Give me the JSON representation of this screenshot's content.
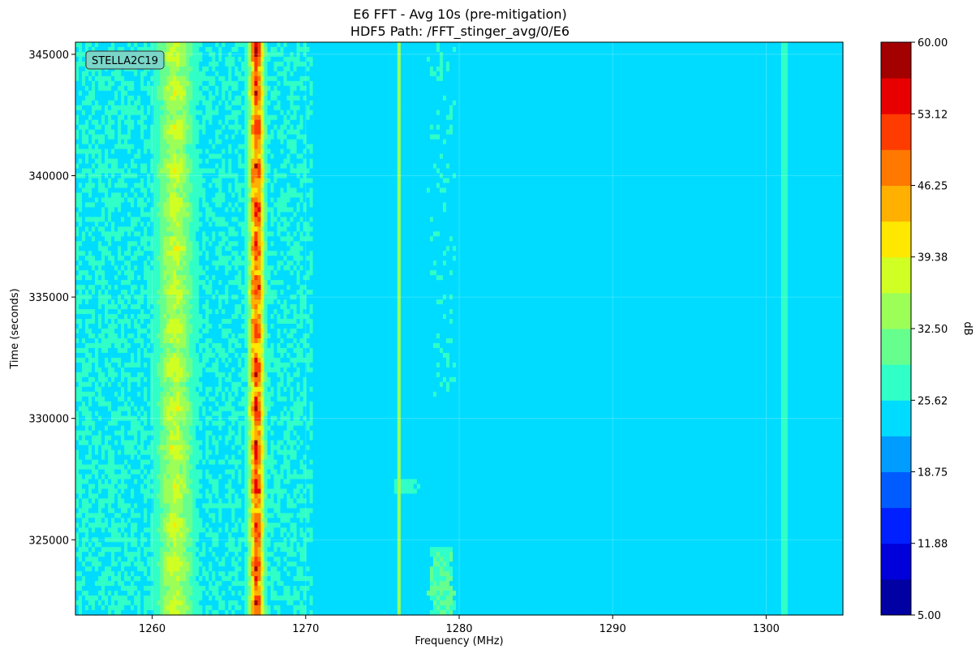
{
  "chart_data": {
    "type": "heatmap",
    "title": "E6 FFT - Avg 10s (pre-mitigation)",
    "subtitle": "HDF5 Path: /FFT_stinger_avg/0/E6",
    "xlabel": "Frequency (MHz)",
    "ylabel": "Time (seconds)",
    "xlim": [
      1255,
      1305
    ],
    "ylim": [
      321900,
      345500
    ],
    "x_ticks": [
      1260,
      1270,
      1280,
      1290,
      1300
    ],
    "x_tick_labels": [
      "1260",
      "1270",
      "1280",
      "1290",
      "1300"
    ],
    "y_ticks": [
      325000,
      330000,
      335000,
      340000,
      345000
    ],
    "y_tick_labels": [
      "325000",
      "330000",
      "335000",
      "340000",
      "345000"
    ],
    "grid": true,
    "annotation": "STELLA2C19",
    "colorbar": {
      "label": "dB",
      "min": 5.0,
      "max": 60.0,
      "ticks": [
        5.0,
        11.88,
        18.75,
        25.62,
        32.5,
        39.38,
        46.25,
        53.12,
        60.0
      ],
      "tick_labels": [
        "5.00",
        "11.88",
        "18.75",
        "25.62",
        "32.50",
        "39.38",
        "46.25",
        "53.12",
        "60.00"
      ],
      "levels": 16,
      "colormap": "jet"
    },
    "features": [
      {
        "kind": "band",
        "center_mhz": 1261.5,
        "width_mhz": 3.0,
        "level_db": 36
      },
      {
        "kind": "band",
        "center_mhz": 1266.8,
        "width_mhz": 1.2,
        "level_db": 50
      },
      {
        "kind": "line",
        "freq_mhz": 1276.1,
        "level_db": 33
      },
      {
        "kind": "line",
        "freq_mhz": 1301.2,
        "level_db": 29
      },
      {
        "kind": "blob",
        "freq_mhz": 1278.9,
        "time_start": 331000,
        "time_end": 345500,
        "level_db": 26
      },
      {
        "kind": "blob",
        "freq_mhz": 1278.9,
        "time_start": 321900,
        "time_end": 324600,
        "level_db": 30
      },
      {
        "kind": "hline",
        "time_s": 335800,
        "freq_start": 1255,
        "freq_end": 1305,
        "level_db": 25
      },
      {
        "kind": "blob",
        "freq_mhz": 1276.5,
        "time_start": 327000,
        "time_end": 327400,
        "level_db": 28
      }
    ]
  }
}
